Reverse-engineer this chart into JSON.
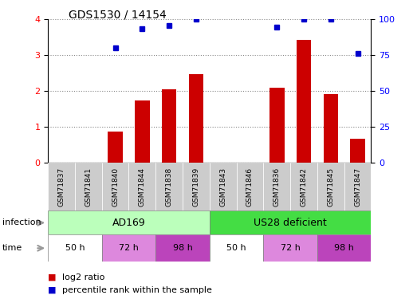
{
  "title": "GDS1530 / 14154",
  "samples": [
    "GSM71837",
    "GSM71841",
    "GSM71840",
    "GSM71844",
    "GSM71838",
    "GSM71839",
    "GSM71843",
    "GSM71846",
    "GSM71836",
    "GSM71842",
    "GSM71845",
    "GSM71847"
  ],
  "log2_ratio": [
    0.0,
    0.0,
    0.88,
    1.75,
    2.05,
    2.47,
    0.0,
    0.0,
    2.1,
    3.42,
    1.93,
    0.68
  ],
  "percentile_rank": [
    null,
    null,
    3.2,
    3.75,
    3.82,
    4.0,
    null,
    null,
    3.78,
    4.0,
    4.0,
    3.05
  ],
  "bar_color": "#cc0000",
  "dot_color": "#0000cc",
  "ylim_left": [
    0,
    4
  ],
  "ylim_right": [
    0,
    100
  ],
  "yticks_left": [
    0,
    1,
    2,
    3,
    4
  ],
  "yticks_right": [
    0,
    25,
    50,
    75,
    100
  ],
  "infection_ad_color": "#bbffbb",
  "infection_us_color": "#44dd44",
  "time_labels": [
    "50 h",
    "72 h",
    "98 h",
    "50 h",
    "72 h",
    "98 h"
  ],
  "time_colors": [
    "#ffffff",
    "#dd88dd",
    "#bb44bb",
    "#ffffff",
    "#dd88dd",
    "#bb44bb"
  ],
  "sample_bg_color": "#cccccc",
  "legend_bar_label": "log2 ratio",
  "legend_dot_label": "percentile rank within the sample",
  "grid_color": "#888888",
  "arrow_color": "#999999"
}
